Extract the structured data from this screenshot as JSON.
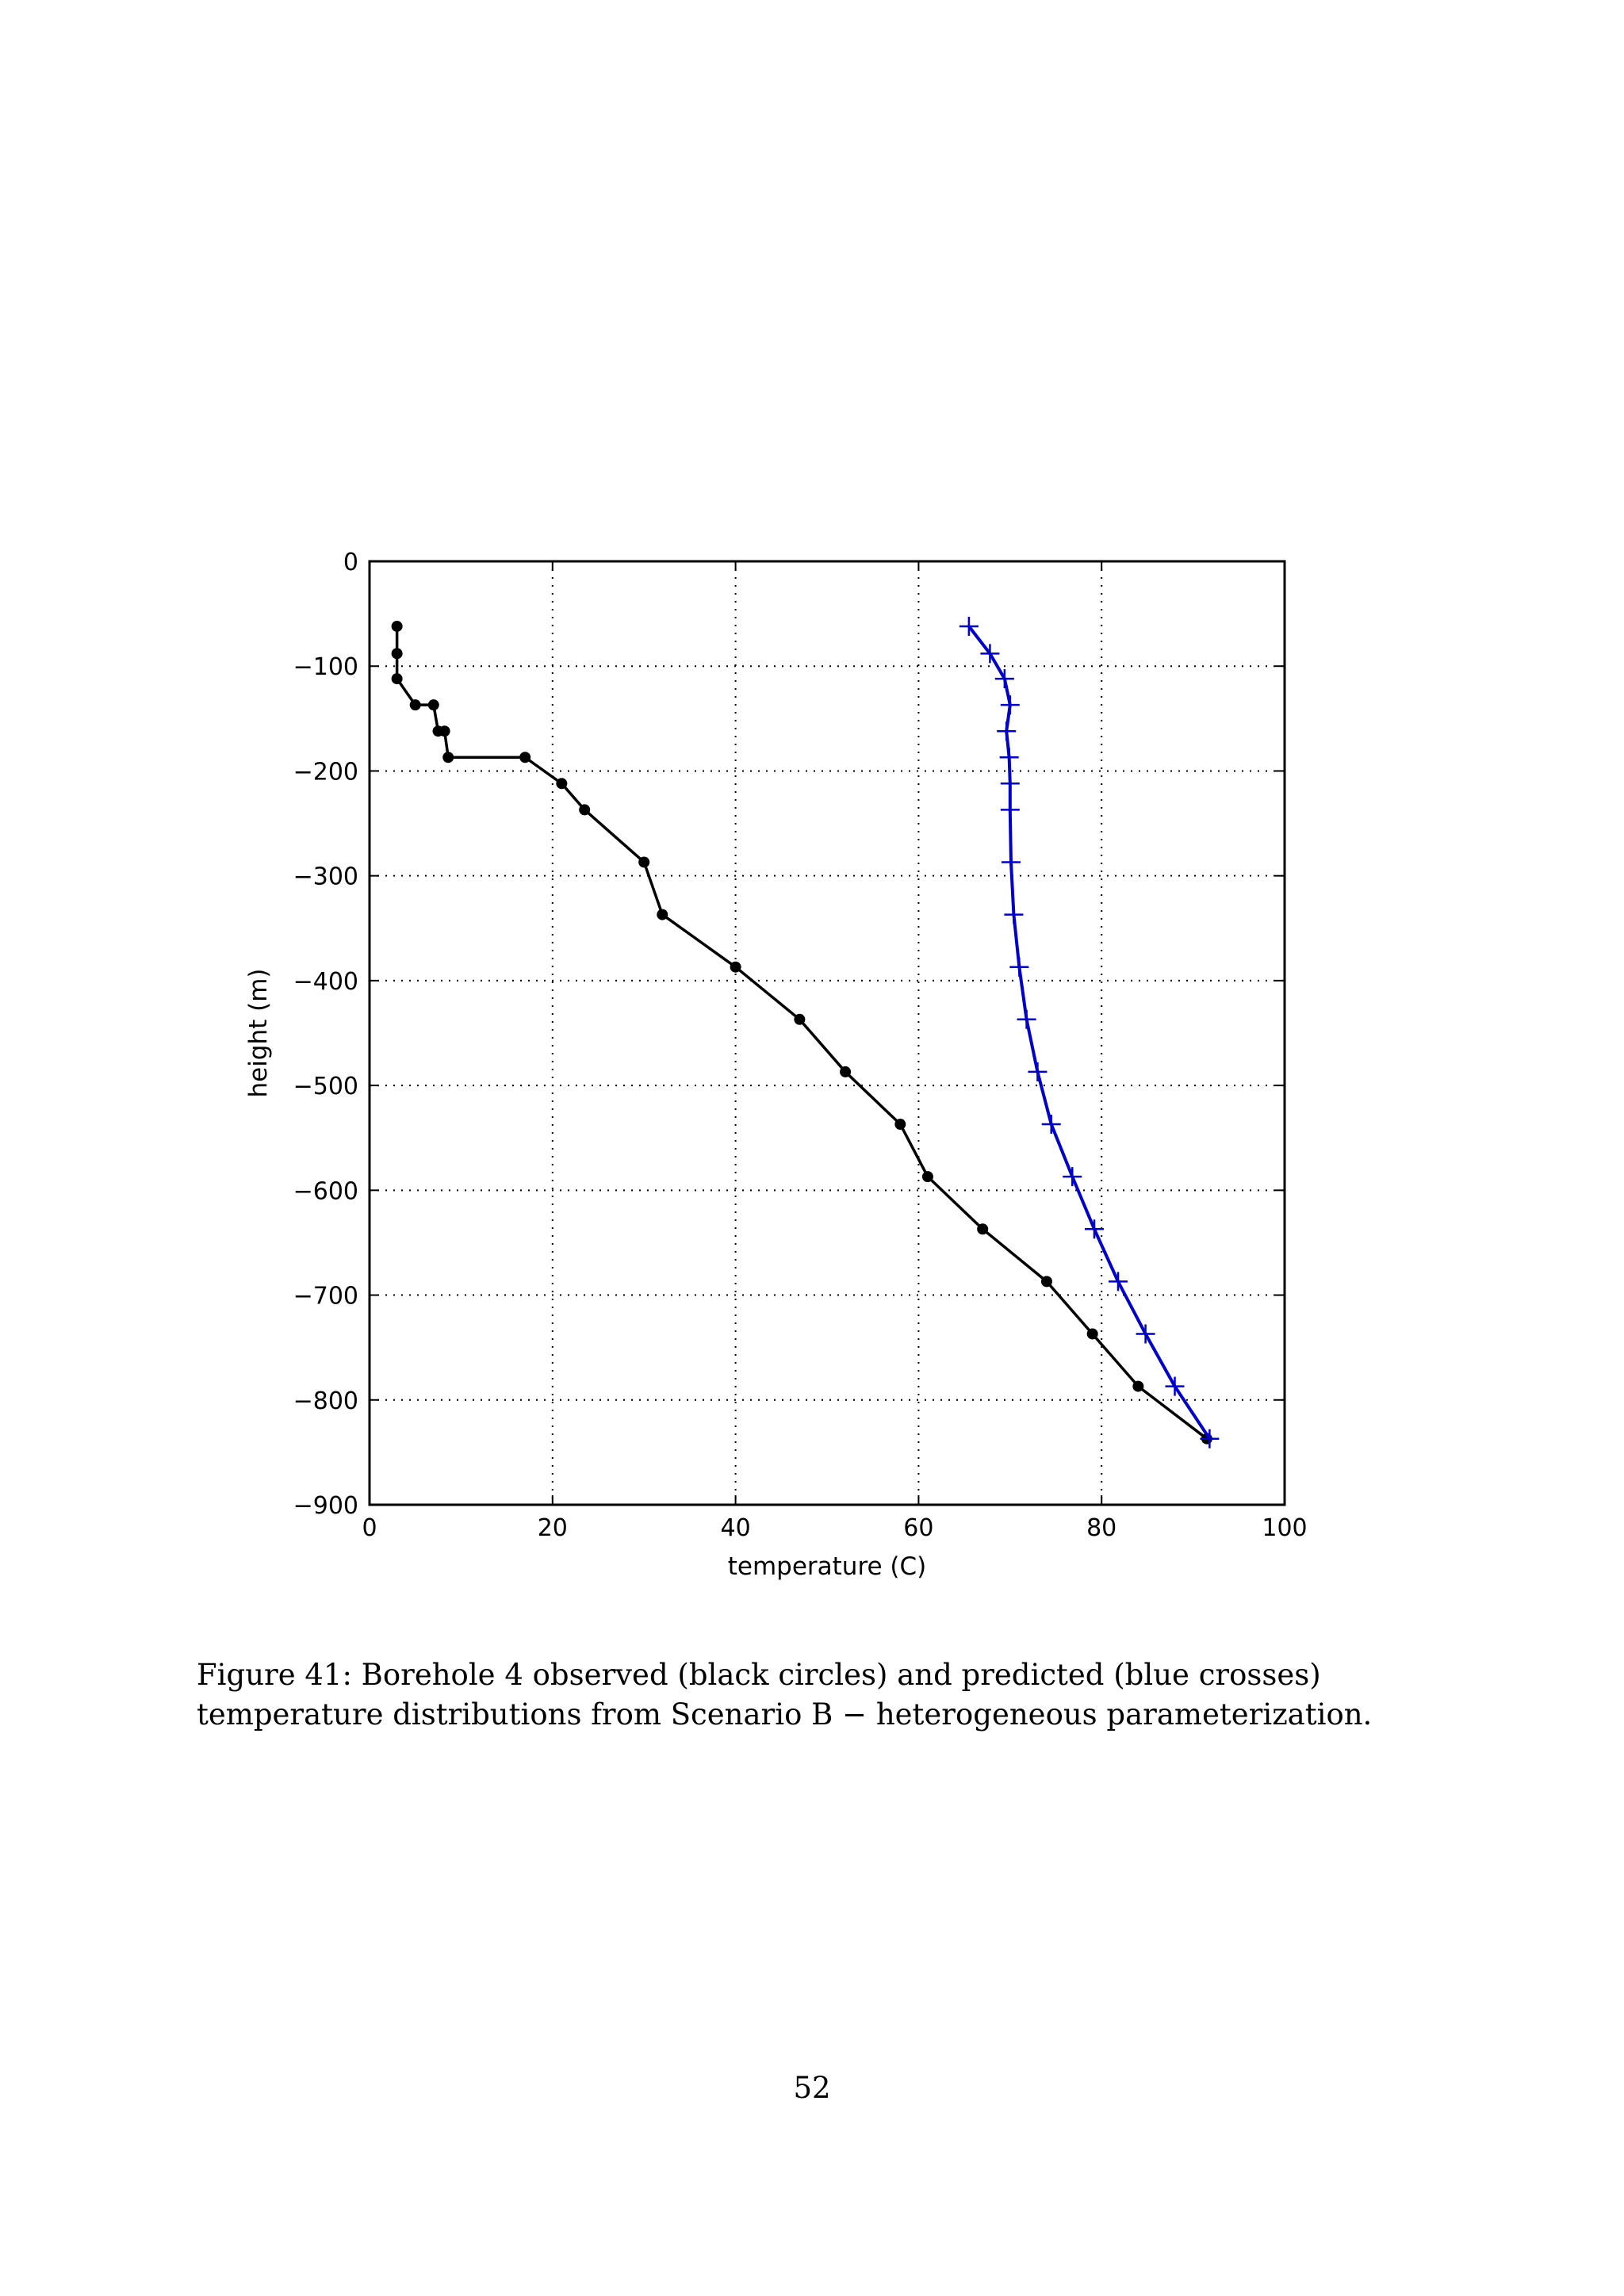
{
  "caption": "Figure 41: Borehole 4 observed (black circles) and predicted (blue crosses) temperature distributions from Scenario B − heterogeneous parameterization.",
  "page_number": "52",
  "chart_data": {
    "type": "line",
    "title": "",
    "xlabel": "temperature (C)",
    "ylabel": "height (m)",
    "xlim": [
      0,
      100
    ],
    "ylim": [
      -900,
      0
    ],
    "xticks": [
      0,
      20,
      40,
      60,
      80,
      100
    ],
    "yticks": [
      0,
      -100,
      -200,
      -300,
      -400,
      -500,
      -600,
      -700,
      -800,
      -900
    ],
    "ytick_labels": [
      "0",
      "−100",
      "−200",
      "−300",
      "−400",
      "−500",
      "−600",
      "−700",
      "−800",
      "−900"
    ],
    "grid": true,
    "grid_style": "dotted",
    "series": [
      {
        "color": "#000000",
        "marker": "circle",
        "x": [
          3.0,
          3.0,
          3.0,
          5.0,
          7.0,
          7.5,
          8.2,
          8.6,
          17.0,
          21.0,
          23.5,
          30.0,
          32.0,
          40.0,
          47.0,
          52.0,
          58.0,
          61.0,
          67.0,
          74.0,
          79.0,
          84.0,
          91.5
        ],
        "y": [
          -62,
          -88,
          -112,
          -137,
          -137,
          -162,
          -162,
          -187,
          -187,
          -212,
          -237,
          -287,
          -337,
          -387,
          -437,
          -487,
          -537,
          -587,
          -637,
          -687,
          -737,
          -787,
          -837
        ]
      },
      {
        "color": "#0000cc",
        "marker": "plus",
        "x": [
          65.5,
          67.8,
          69.4,
          70.0,
          69.6,
          69.9,
          70.0,
          70.0,
          70.1,
          70.4,
          71.0,
          71.8,
          73.0,
          74.5,
          76.8,
          79.2,
          81.8,
          84.8,
          88.0,
          91.8
        ],
        "y": [
          -62,
          -88,
          -112,
          -137,
          -162,
          -187,
          -212,
          -237,
          -287,
          -337,
          -387,
          -437,
          -487,
          -537,
          -587,
          -637,
          -687,
          -737,
          -787,
          -837
        ]
      }
    ]
  }
}
